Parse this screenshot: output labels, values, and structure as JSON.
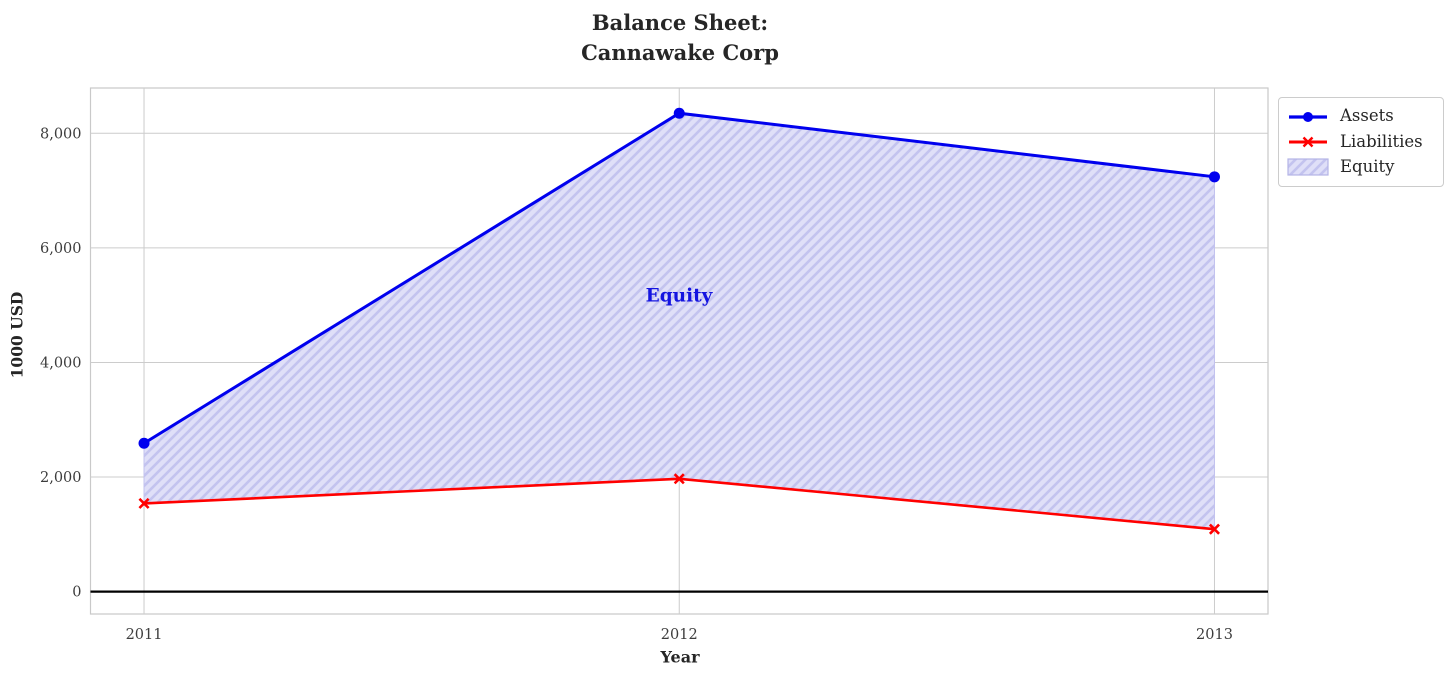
{
  "chart_data": {
    "type": "line",
    "title": "Balance Sheet:\nCannawake Corp",
    "xlabel": "Year",
    "ylabel": "1000 USD",
    "x": [
      2011,
      2012,
      2013
    ],
    "xtick_labels": [
      "2011",
      "2012",
      "2013"
    ],
    "series": [
      {
        "name": "Assets",
        "color": "#0000ee",
        "marker": "circle",
        "line_width": 3,
        "values": [
          2590,
          8350,
          7240
        ]
      },
      {
        "name": "Liabilities",
        "color": "#ff0000",
        "marker": "x",
        "line_width": 2.6,
        "values": [
          1540,
          1970,
          1090
        ]
      }
    ],
    "area": {
      "name": "Equity",
      "between": [
        "Assets",
        "Liabilities"
      ],
      "values": [
        1050,
        6380,
        6150
      ],
      "fill": "#dfdff8",
      "hatch": "//",
      "hatch_color": "#c3c3ef",
      "annotation": "Equity",
      "annotation_color": "#1414e0",
      "annotation_x": 2012,
      "annotation_y": 5160
    },
    "yticks": [
      0,
      2000,
      4000,
      6000,
      8000
    ],
    "ytick_labels": [
      "0",
      "2,000",
      "4,000",
      "6,000",
      "8,000"
    ],
    "ylim": [
      -390,
      8790
    ],
    "xlim": [
      2010.9,
      2013.1
    ],
    "grid": true,
    "grid_color": "#cccccc",
    "spine_color": "#c9c9c9",
    "tick_label_color": "#3d3d3d",
    "zero_line": true,
    "zero_line_color": "#000000",
    "legend_position": "upper right outside"
  },
  "legend": {
    "items": [
      {
        "label": "Assets"
      },
      {
        "label": "Liabilities"
      },
      {
        "label": "Equity"
      }
    ]
  }
}
